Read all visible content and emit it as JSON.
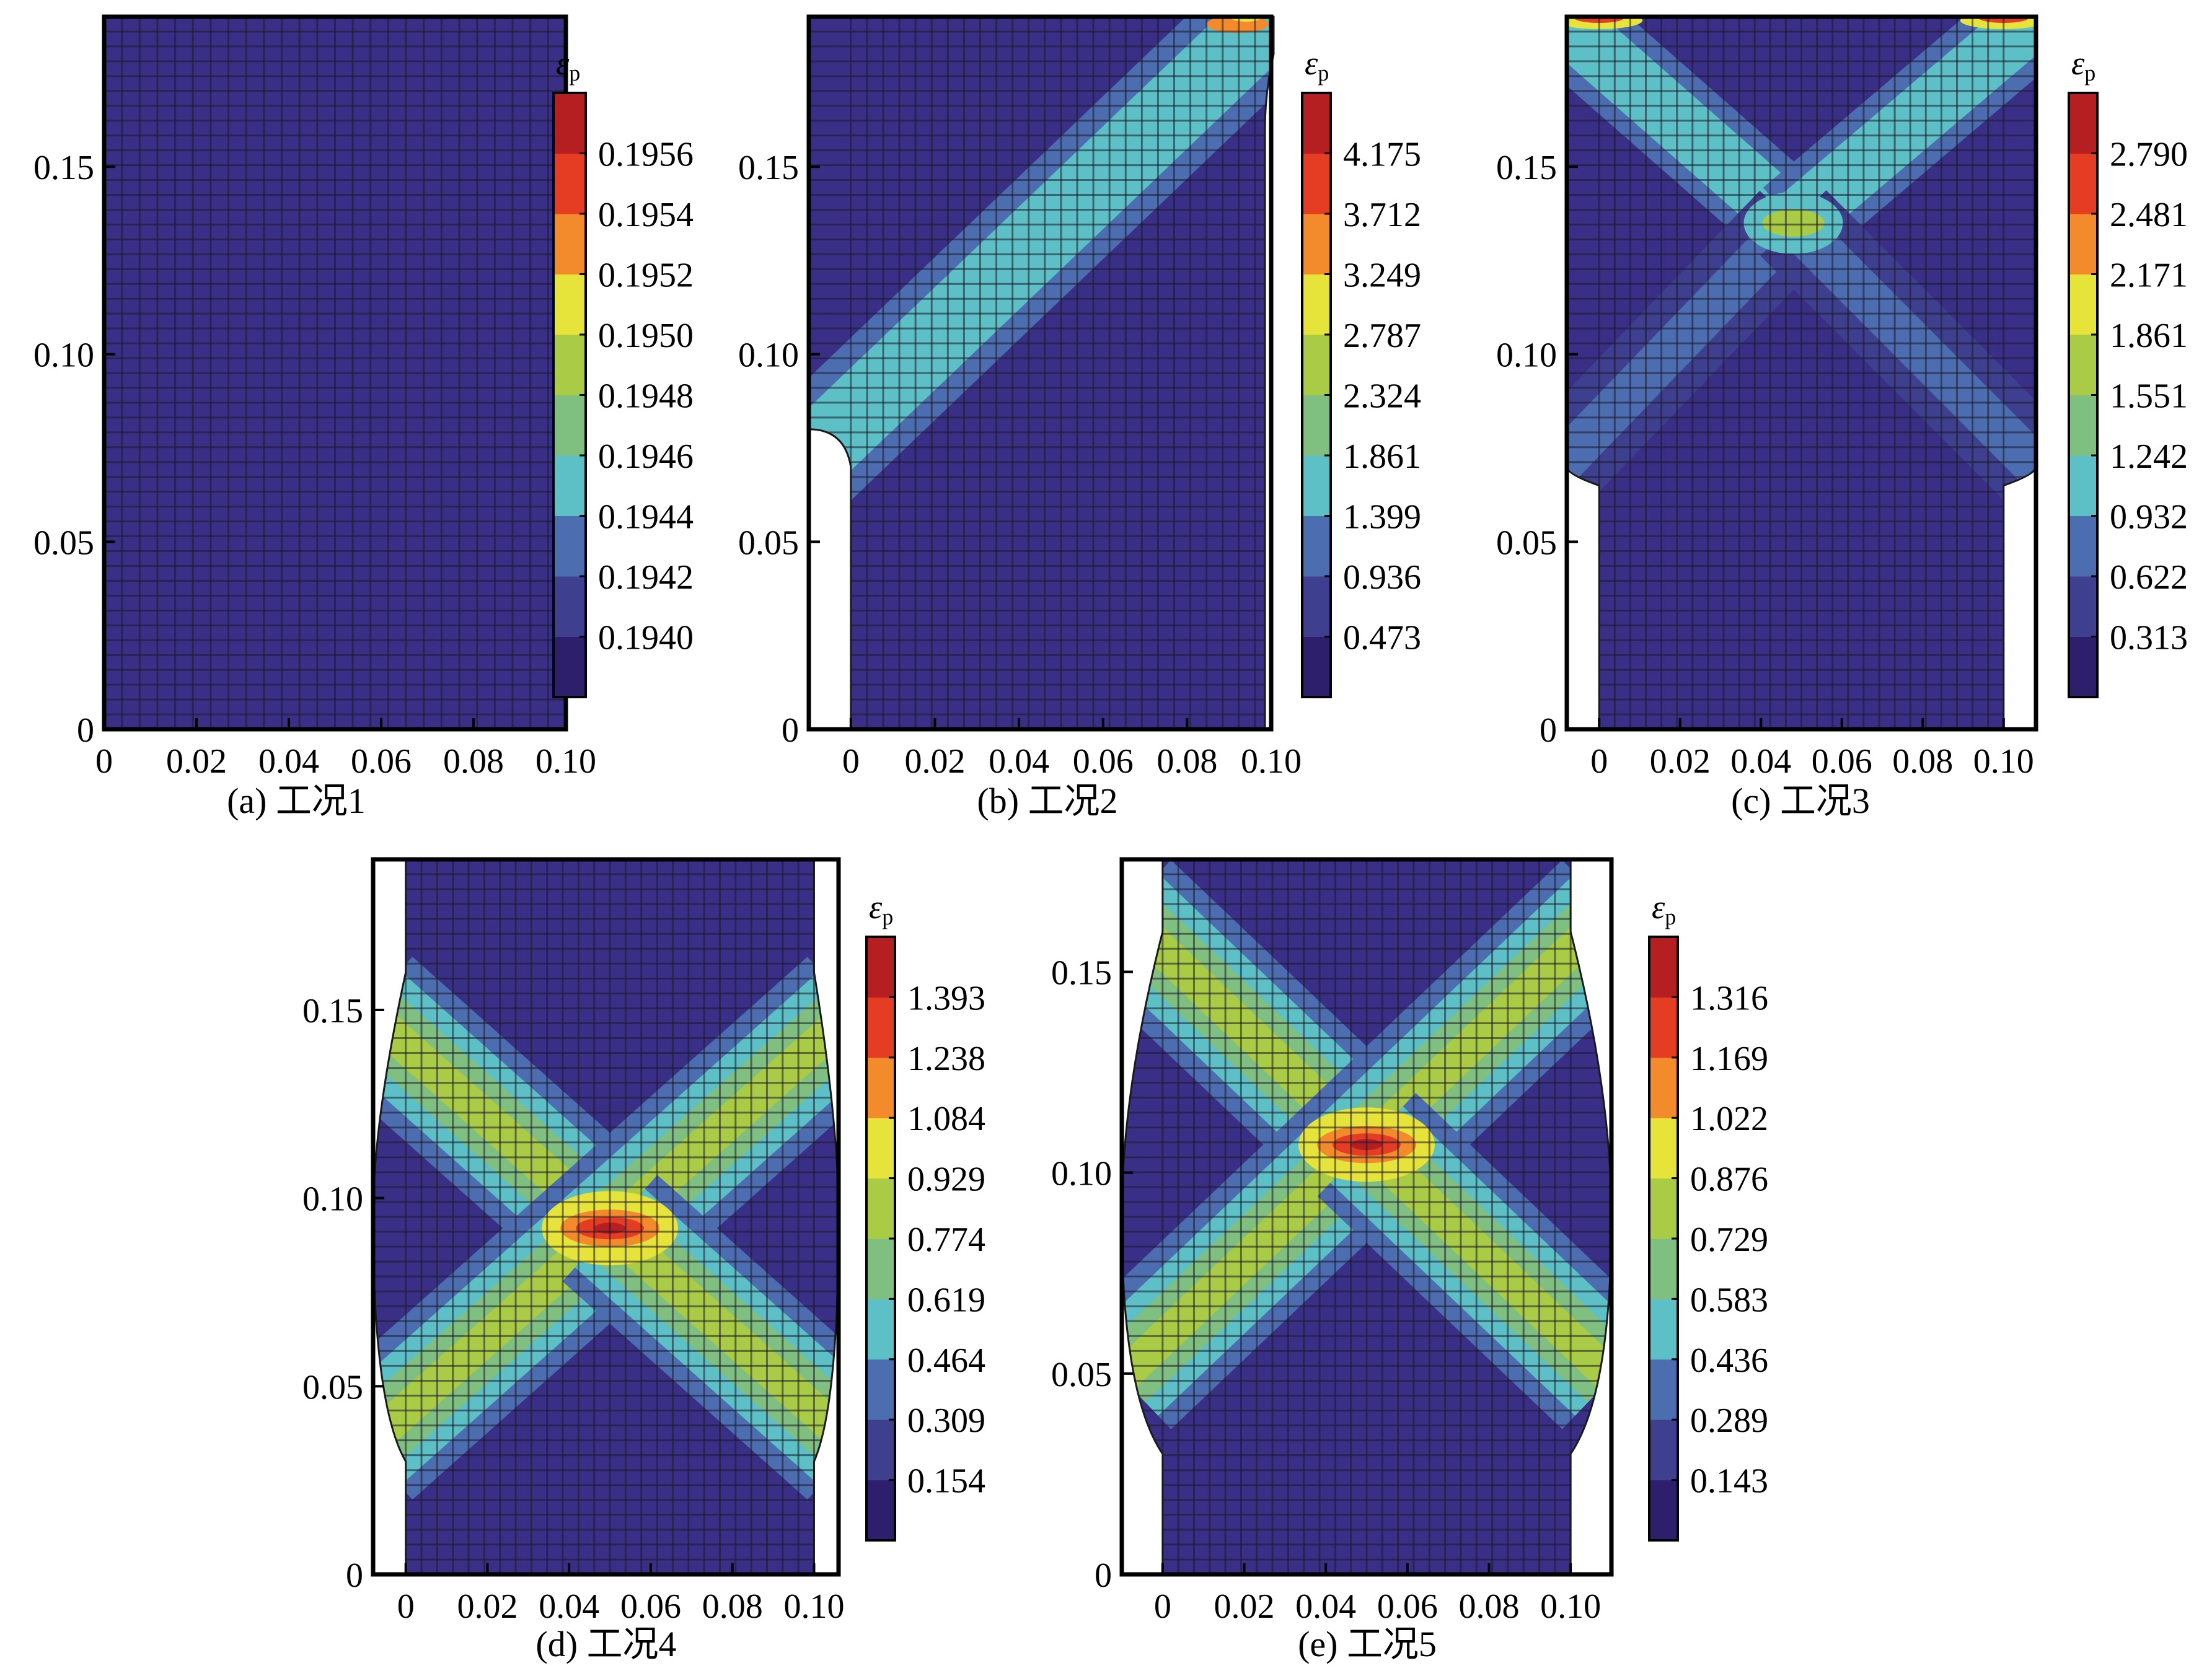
{
  "colorbar_colors": [
    "#2e1f6d",
    "#3f3f8f",
    "#4c6db0",
    "#5dc0c6",
    "#7fbf7f",
    "#a9cb45",
    "#e6e33a",
    "#f38b2c",
    "#e53c24",
    "#b51f21"
  ],
  "background_color": "#3a2f87",
  "grid_color": "#1b1a2a",
  "chart_data": [
    {
      "type": "heatmap",
      "caption": "(a) 工况1",
      "colorbar_title": "ε",
      "colorbar_subscript": "p",
      "colorbar_ticks": [
        "0.1940",
        "0.1942",
        "0.1944",
        "0.1946",
        "0.1948",
        "0.1950",
        "0.1952",
        "0.1954",
        "0.1956"
      ],
      "x_ticks": [
        "0",
        "0.02",
        "0.04",
        "0.06",
        "0.08",
        "0.10"
      ],
      "y_ticks": [
        "0",
        "0.05",
        "0.10",
        "0.15"
      ],
      "xlim": [
        0,
        0.1
      ],
      "ylim": [
        0,
        0.19
      ],
      "pattern": "uniform"
    },
    {
      "type": "heatmap",
      "caption": "(b) 工况2",
      "colorbar_title": "ε",
      "colorbar_subscript": "p",
      "colorbar_ticks": [
        "0.473",
        "0.936",
        "1.399",
        "1.861",
        "2.324",
        "2.787",
        "3.249",
        "3.712",
        "4.175"
      ],
      "x_ticks": [
        "0",
        "0.02",
        "0.04",
        "0.06",
        "0.08",
        "0.10"
      ],
      "y_ticks": [
        "0",
        "0.05",
        "0.10",
        "0.15"
      ],
      "xlim": [
        -0.01,
        0.1
      ],
      "ylim": [
        0,
        0.19
      ],
      "pattern": "single-band"
    },
    {
      "type": "heatmap",
      "caption": "(c) 工况3",
      "colorbar_title": "ε",
      "colorbar_subscript": "p",
      "colorbar_ticks": [
        "0.313",
        "0.622",
        "0.932",
        "1.242",
        "1.551",
        "1.861",
        "2.171",
        "2.481",
        "2.790"
      ],
      "x_ticks": [
        "0",
        "0.02",
        "0.04",
        "0.06",
        "0.08",
        "0.10"
      ],
      "y_ticks": [
        "0",
        "0.05",
        "0.10",
        "0.15"
      ],
      "xlim": [
        -0.008,
        0.108
      ],
      "ylim": [
        0,
        0.19
      ],
      "pattern": "upper-x"
    },
    {
      "type": "heatmap",
      "caption": "(d) 工况4",
      "colorbar_title": "ε",
      "colorbar_subscript": "p",
      "colorbar_ticks": [
        "0.154",
        "0.309",
        "0.464",
        "0.619",
        "0.774",
        "0.929",
        "1.084",
        "1.238",
        "1.393"
      ],
      "x_ticks": [
        "0",
        "0.02",
        "0.04",
        "0.06",
        "0.08",
        "0.10"
      ],
      "y_ticks": [
        "0",
        "0.05",
        "0.10",
        "0.15"
      ],
      "xlim": [
        -0.008,
        0.106
      ],
      "ylim": [
        0,
        0.19
      ],
      "pattern": "x-band-strong"
    },
    {
      "type": "heatmap",
      "caption": "(e) 工况5",
      "colorbar_title": "ε",
      "colorbar_subscript": "p",
      "colorbar_ticks": [
        "0.143",
        "0.289",
        "0.436",
        "0.583",
        "0.729",
        "0.876",
        "1.022",
        "1.169",
        "1.316"
      ],
      "x_ticks": [
        "0",
        "0.02",
        "0.04",
        "0.06",
        "0.08",
        "0.10"
      ],
      "y_ticks": [
        "0",
        "0.05",
        "0.10",
        "0.15"
      ],
      "xlim": [
        -0.01,
        0.11
      ],
      "ylim": [
        0,
        0.178
      ],
      "pattern": "x-band-strong"
    }
  ]
}
